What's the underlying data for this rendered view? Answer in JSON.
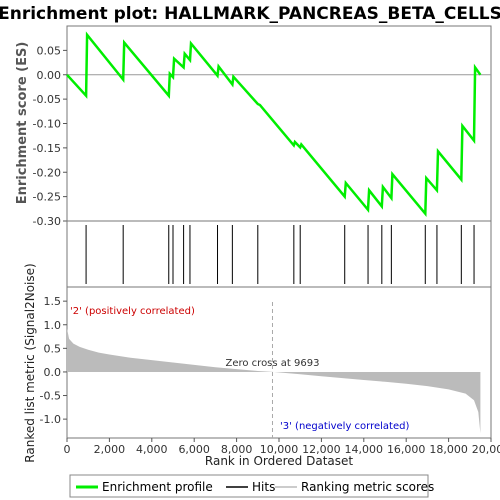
{
  "chart_data": {
    "type": "line",
    "title": "Enrichment plot: HALLMARK_PANCREAS_BETA_CELLS",
    "es_panel": {
      "ylabel": "Enrichment score (ES)",
      "ylim": [
        -0.3,
        0.1
      ],
      "yticks": [
        "0.05",
        "0.00",
        "-0.05",
        "-0.10",
        "-0.15",
        "-0.20",
        "-0.25",
        "-0.30"
      ],
      "series": [
        {
          "name": "Enrichment profile",
          "color": "#00ee00",
          "points": [
            [
              0,
              0.0
            ],
            [
              900,
              -0.043
            ],
            [
              950,
              0.082
            ],
            [
              2650,
              -0.01
            ],
            [
              2700,
              0.066
            ],
            [
              4800,
              -0.043
            ],
            [
              4850,
              0.002
            ],
            [
              5000,
              -0.005
            ],
            [
              5050,
              0.033
            ],
            [
              5500,
              0.015
            ],
            [
              5550,
              0.043
            ],
            [
              5800,
              0.03
            ],
            [
              5850,
              0.064
            ],
            [
              7100,
              -0.002
            ],
            [
              7150,
              0.017
            ],
            [
              7800,
              -0.02
            ],
            [
              7850,
              -0.004
            ],
            [
              9000,
              -0.06
            ],
            [
              9100,
              -0.062
            ],
            [
              10700,
              -0.145
            ],
            [
              10750,
              -0.138
            ],
            [
              11000,
              -0.149
            ],
            [
              11050,
              -0.143
            ],
            [
              13100,
              -0.25
            ],
            [
              13150,
              -0.222
            ],
            [
              14200,
              -0.277
            ],
            [
              14250,
              -0.237
            ],
            [
              14850,
              -0.27
            ],
            [
              14900,
              -0.23
            ],
            [
              15300,
              -0.253
            ],
            [
              15350,
              -0.204
            ],
            [
              16900,
              -0.285
            ],
            [
              16950,
              -0.212
            ],
            [
              17450,
              -0.237
            ],
            [
              17500,
              -0.157
            ],
            [
              18600,
              -0.215
            ],
            [
              18650,
              -0.105
            ],
            [
              19200,
              -0.135
            ],
            [
              19250,
              0.015
            ],
            [
              19500,
              0.0
            ]
          ]
        }
      ]
    },
    "hits": [
      900,
      2650,
      4800,
      5000,
      5500,
      5800,
      7100,
      7800,
      9000,
      10700,
      11000,
      13100,
      14200,
      14850,
      15300,
      16900,
      17450,
      18600,
      19200
    ],
    "rank_panel": {
      "ylabel": "Ranked list metric (Signal2Noise)",
      "xlabel": "Rank in Ordered Dataset",
      "ylim": [
        -1.4,
        1.8
      ],
      "yticks": [
        "1.5",
        "1.0",
        "0.5",
        "0.0",
        "-0.5",
        "-1.0"
      ],
      "xlim": [
        0,
        20000
      ],
      "xticks": [
        "0",
        "2,000",
        "4,000",
        "6,000",
        "8,000",
        "10,000",
        "12,000",
        "14,000",
        "16,000",
        "18,000",
        "20,000"
      ],
      "n_genes": 19500,
      "zero_cross": 9693,
      "zero_cross_label": "Zero cross at 9693",
      "pos_label": "'2' (positively correlated)",
      "neg_label": "'3' (negatively correlated)",
      "metric_profile": [
        [
          0,
          0.92
        ],
        [
          100,
          0.7
        ],
        [
          300,
          0.6
        ],
        [
          600,
          0.53
        ],
        [
          1000,
          0.47
        ],
        [
          1500,
          0.41
        ],
        [
          2000,
          0.37
        ],
        [
          3000,
          0.3
        ],
        [
          4000,
          0.25
        ],
        [
          5000,
          0.2
        ],
        [
          6000,
          0.15
        ],
        [
          7000,
          0.1
        ],
        [
          8000,
          0.06
        ],
        [
          9000,
          0.02
        ],
        [
          9693,
          0.0
        ],
        [
          11000,
          -0.05
        ],
        [
          12000,
          -0.09
        ],
        [
          13000,
          -0.13
        ],
        [
          14000,
          -0.17
        ],
        [
          15000,
          -0.21
        ],
        [
          16000,
          -0.25
        ],
        [
          17000,
          -0.3
        ],
        [
          18000,
          -0.37
        ],
        [
          18800,
          -0.46
        ],
        [
          19200,
          -0.6
        ],
        [
          19400,
          -0.85
        ],
        [
          19500,
          -1.3
        ]
      ]
    },
    "legend": {
      "placement": "bottom",
      "items": [
        {
          "label": "Enrichment profile",
          "color": "#00ee00",
          "kind": "thick-line"
        },
        {
          "label": "Hits",
          "color": "#000000",
          "kind": "line"
        },
        {
          "label": "Ranking metric scores",
          "color": "#bbbbbb",
          "kind": "line"
        }
      ]
    },
    "grid": false
  }
}
